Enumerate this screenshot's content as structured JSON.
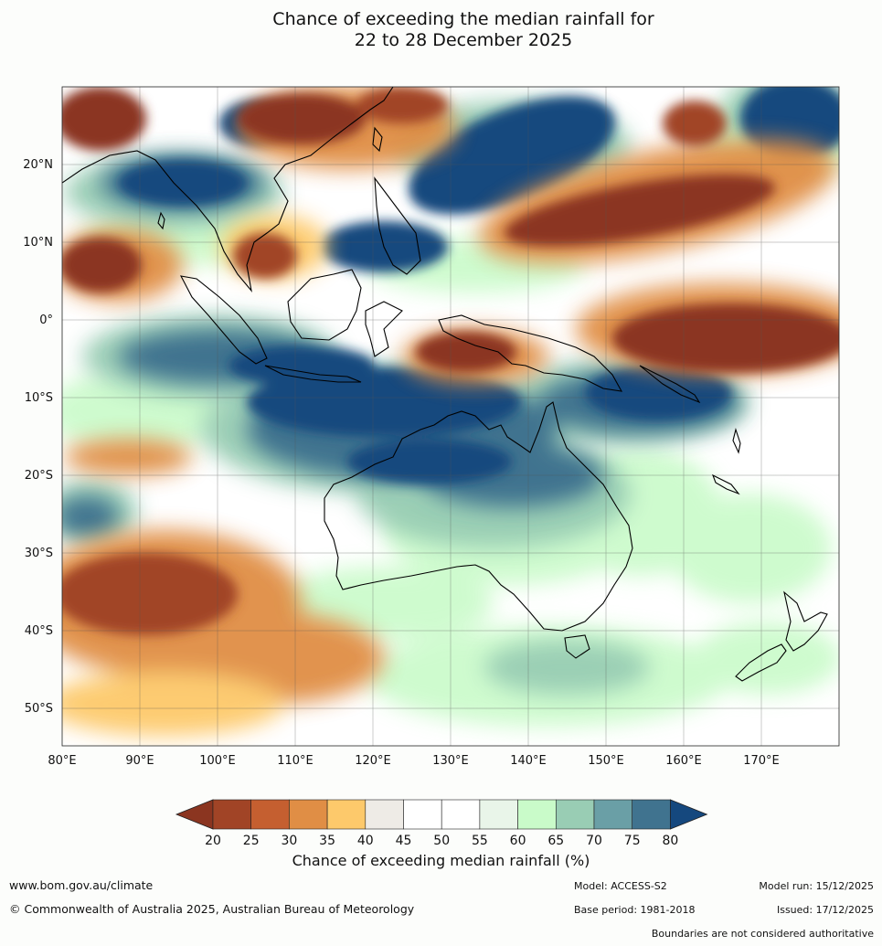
{
  "title_line1": "Chance of exceeding the median rainfall for",
  "title_line2": "22 to 28 December 2025",
  "lat_labels": [
    "20°N",
    "10°N",
    "0°",
    "10°S",
    "20°S",
    "30°S",
    "40°S",
    "50°S"
  ],
  "lon_labels": [
    "80°E",
    "90°E",
    "100°E",
    "110°E",
    "120°E",
    "130°E",
    "140°E",
    "150°E",
    "160°E",
    "170°E"
  ],
  "colorbar": {
    "ticks": [
      "20",
      "25",
      "30",
      "35",
      "40",
      "45",
      "50",
      "55",
      "60",
      "65",
      "70",
      "75",
      "80"
    ],
    "colors": [
      "#a14426",
      "#c55f30",
      "#e08e45",
      "#fdc96b",
      "#eeebe6",
      "#ffffff",
      "#ffffff",
      "#e9f5e9",
      "#c9fbc9",
      "#99cdb4",
      "#6a9fa6",
      "#40738f"
    ],
    "under_color": "#8b3520",
    "over_color": "#15487e",
    "label": "Chance of exceeding median rainfall (%)"
  },
  "footer": {
    "website": "www.bom.gov.au/climate",
    "copyright": "© Commonwealth of Australia 2025, Australian Bureau of Meteorology",
    "model": "Model: ACCESS-S2",
    "model_run": "Model run: 15/12/2025",
    "base_period": "Base period: 1981-2018",
    "issued": "Issued: 17/12/2025",
    "disclaimer": "Boundaries are not considered authoritative"
  }
}
